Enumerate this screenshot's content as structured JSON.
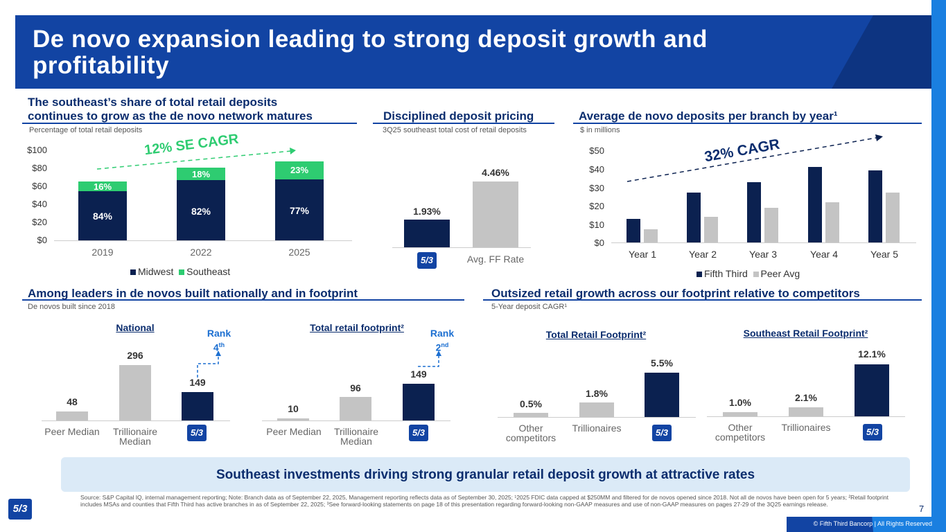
{
  "title": "De novo expansion leading to strong deposit growth and profitability",
  "sections": {
    "share": {
      "heading_l1": "The southeast’s share of total retail deposits",
      "heading_l2": "continues to grow as the de novo network matures",
      "subtitle": "Percentage of total retail deposits",
      "cagr": "12% SE CAGR"
    },
    "pricing": {
      "heading": "Disciplined deposit pricing",
      "subtitle": "3Q25 southeast total cost of retail deposits"
    },
    "avg": {
      "heading": "Average de novo deposits per branch by year¹",
      "subtitle": "$ in millions",
      "cagr": "32% CAGR"
    },
    "leaders": {
      "heading": "Among leaders in de novos built nationally and in footprint",
      "subtitle": "De novos built since 2018"
    },
    "outsized": {
      "heading": "Outsized retail growth across our footprint relative to competitors",
      "subtitle": "5-Year deposit CAGR¹"
    }
  },
  "chart_data": [
    {
      "type": "bar",
      "title": "The southeast’s share of total retail deposits continues to grow as the de novo network matures",
      "categories": [
        "2019",
        "2022",
        "2025"
      ],
      "series": [
        {
          "name": "Midwest",
          "values": [
            84,
            82,
            77
          ],
          "labels": [
            "84%",
            "82%",
            "77%"
          ]
        },
        {
          "name": "Southeast",
          "values": [
            16,
            18,
            23
          ],
          "labels": [
            "16%",
            "18%",
            "23%"
          ]
        }
      ],
      "yticks": [
        "$100",
        "$80",
        "$60",
        "$40",
        "$20",
        "$0"
      ],
      "ylim": [
        0,
        100
      ],
      "annotation": "12% SE CAGR"
    },
    {
      "type": "bar",
      "title": "Disciplined deposit pricing",
      "categories": [
        "Fifth Third",
        "Avg. FF Rate"
      ],
      "values": [
        1.93,
        4.46
      ],
      "labels": [
        "1.93%",
        "4.46%"
      ]
    },
    {
      "type": "bar",
      "title": "Average de novo deposits per branch by year",
      "categories": [
        "Year 1",
        "Year 2",
        "Year 3",
        "Year 4",
        "Year 5"
      ],
      "series": [
        {
          "name": "Fifth Third",
          "values": [
            13,
            27,
            33,
            41,
            39
          ]
        },
        {
          "name": "Peer Avg",
          "values": [
            7,
            14,
            19,
            22,
            27
          ]
        }
      ],
      "yticks": [
        "$50",
        "$40",
        "$30",
        "$20",
        "$10",
        "$0"
      ],
      "ylim": [
        0,
        50
      ],
      "annotation": "32% CAGR"
    },
    {
      "type": "bar",
      "title": "National",
      "categories": [
        "Peer Median",
        "Trillionaire Median",
        "Fifth Third"
      ],
      "values": [
        48,
        296,
        149
      ],
      "labels": [
        "48",
        "296",
        "149"
      ],
      "rank": "Rank",
      "rank_num": "4",
      "rank_sup": "th"
    },
    {
      "type": "bar",
      "title": "Total retail footprint²",
      "categories": [
        "Peer Median",
        "Trillionaire Median",
        "Fifth Third"
      ],
      "values": [
        10,
        96,
        149
      ],
      "labels": [
        "10",
        "96",
        "149"
      ],
      "rank": "Rank",
      "rank_num": "2",
      "rank_sup": "nd"
    },
    {
      "type": "bar",
      "title": "Total Retail Footprint²",
      "categories": [
        "Other competitors",
        "Trillionaires",
        "Fifth Third"
      ],
      "values": [
        0.5,
        1.8,
        5.5
      ],
      "labels": [
        "0.5%",
        "1.8%",
        "5.5%"
      ]
    },
    {
      "type": "bar",
      "title": "Southeast Retail Footprint²",
      "categories": [
        "Other competitors",
        "Trillionaires",
        "Fifth Third"
      ],
      "values": [
        1.0,
        2.1,
        12.1
      ],
      "labels": [
        "1.0%",
        "2.1%",
        "12.1%"
      ]
    }
  ],
  "cat_labels": {
    "peer_median": "Peer Median",
    "trill_median_l1": "Trillionaire",
    "trill_median_l2": "Median",
    "other_l1": "Other",
    "other_l2": "competitors",
    "trillionaires": "Trillionaires",
    "avg_ff": "Avg. FF Rate"
  },
  "logo_text": "5/3",
  "footer_banner": "Southeast investments driving strong granular retail deposit growth at attractive rates",
  "source_note": "Source: S&P Capital IQ, internal management reporting; Note: Branch data as of September 22, 2025, Management reporting reflects data as of September 30, 2025; ¹2025 FDIC data capped at $250MM and filtered for de novos opened since 2018. Not all de novos have been open for 5 years; ²Retail footprint includes MSAs and counties that Fifth Third has active branches in as of September 22, 2025; ³See forward-looking statements on page 18 of this presentation regarding forward-looking non-GAAP measures and use of non-GAAP measures on pages 27-29 of the 3Q25 earnings release.",
  "page_number": "7",
  "copyright": "© Fifth Third Bancorp | All Rights Reserved",
  "colors": {
    "navy": "#0b2150",
    "blue": "#1244a3",
    "green": "#2ecc71",
    "gray": "#c4c4c4"
  }
}
